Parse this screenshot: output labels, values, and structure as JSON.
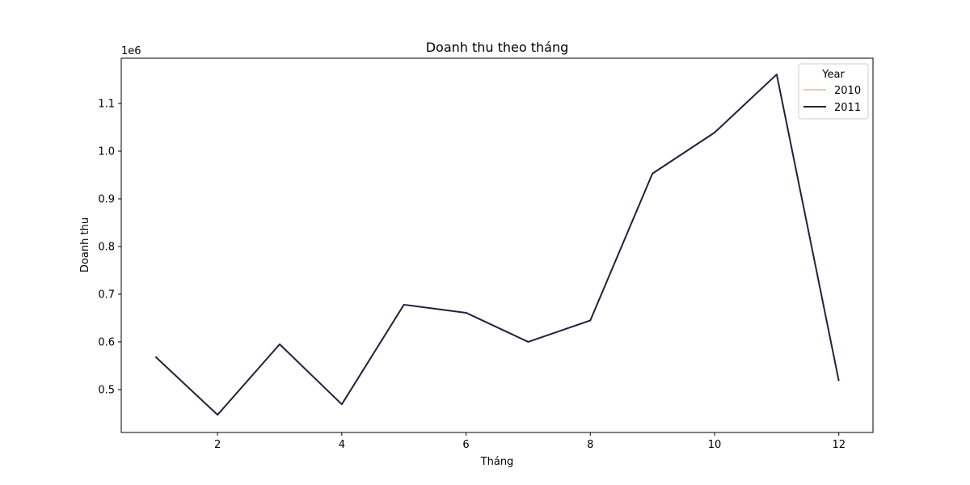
{
  "chart_data": {
    "type": "line",
    "title": "Doanh thu theo tháng",
    "xlabel": "Tháng",
    "ylabel": "Doanh thu",
    "y_offset_label": "1e6",
    "xlim": [
      0.45,
      12.55
    ],
    "ylim": [
      0.41,
      1.195
    ],
    "x_ticks": [
      2,
      4,
      6,
      8,
      10,
      12
    ],
    "x_tick_labels": [
      "2",
      "4",
      "6",
      "8",
      "10",
      "12"
    ],
    "y_ticks": [
      0.5,
      0.6,
      0.7,
      0.8,
      0.9,
      1.0,
      1.1
    ],
    "y_tick_labels": [
      "0.5",
      "0.6",
      "0.7",
      "0.8",
      "0.9",
      "1.0",
      "1.1"
    ],
    "grid": false,
    "legend": {
      "title": "Year",
      "placement": "top-right"
    },
    "series": [
      {
        "name": "2010",
        "color": "#f0c4b4",
        "x": [
          12
        ],
        "y": [
          0.5
        ]
      },
      {
        "name": "2011",
        "color": "#2b1c3b",
        "x": [
          1,
          2,
          3,
          4,
          5,
          6,
          7,
          8,
          9,
          10,
          11,
          12
        ],
        "y": [
          0.569,
          0.447,
          0.595,
          0.469,
          0.678,
          0.661,
          0.6,
          0.645,
          0.953,
          1.039,
          1.161,
          0.518
        ]
      }
    ]
  }
}
